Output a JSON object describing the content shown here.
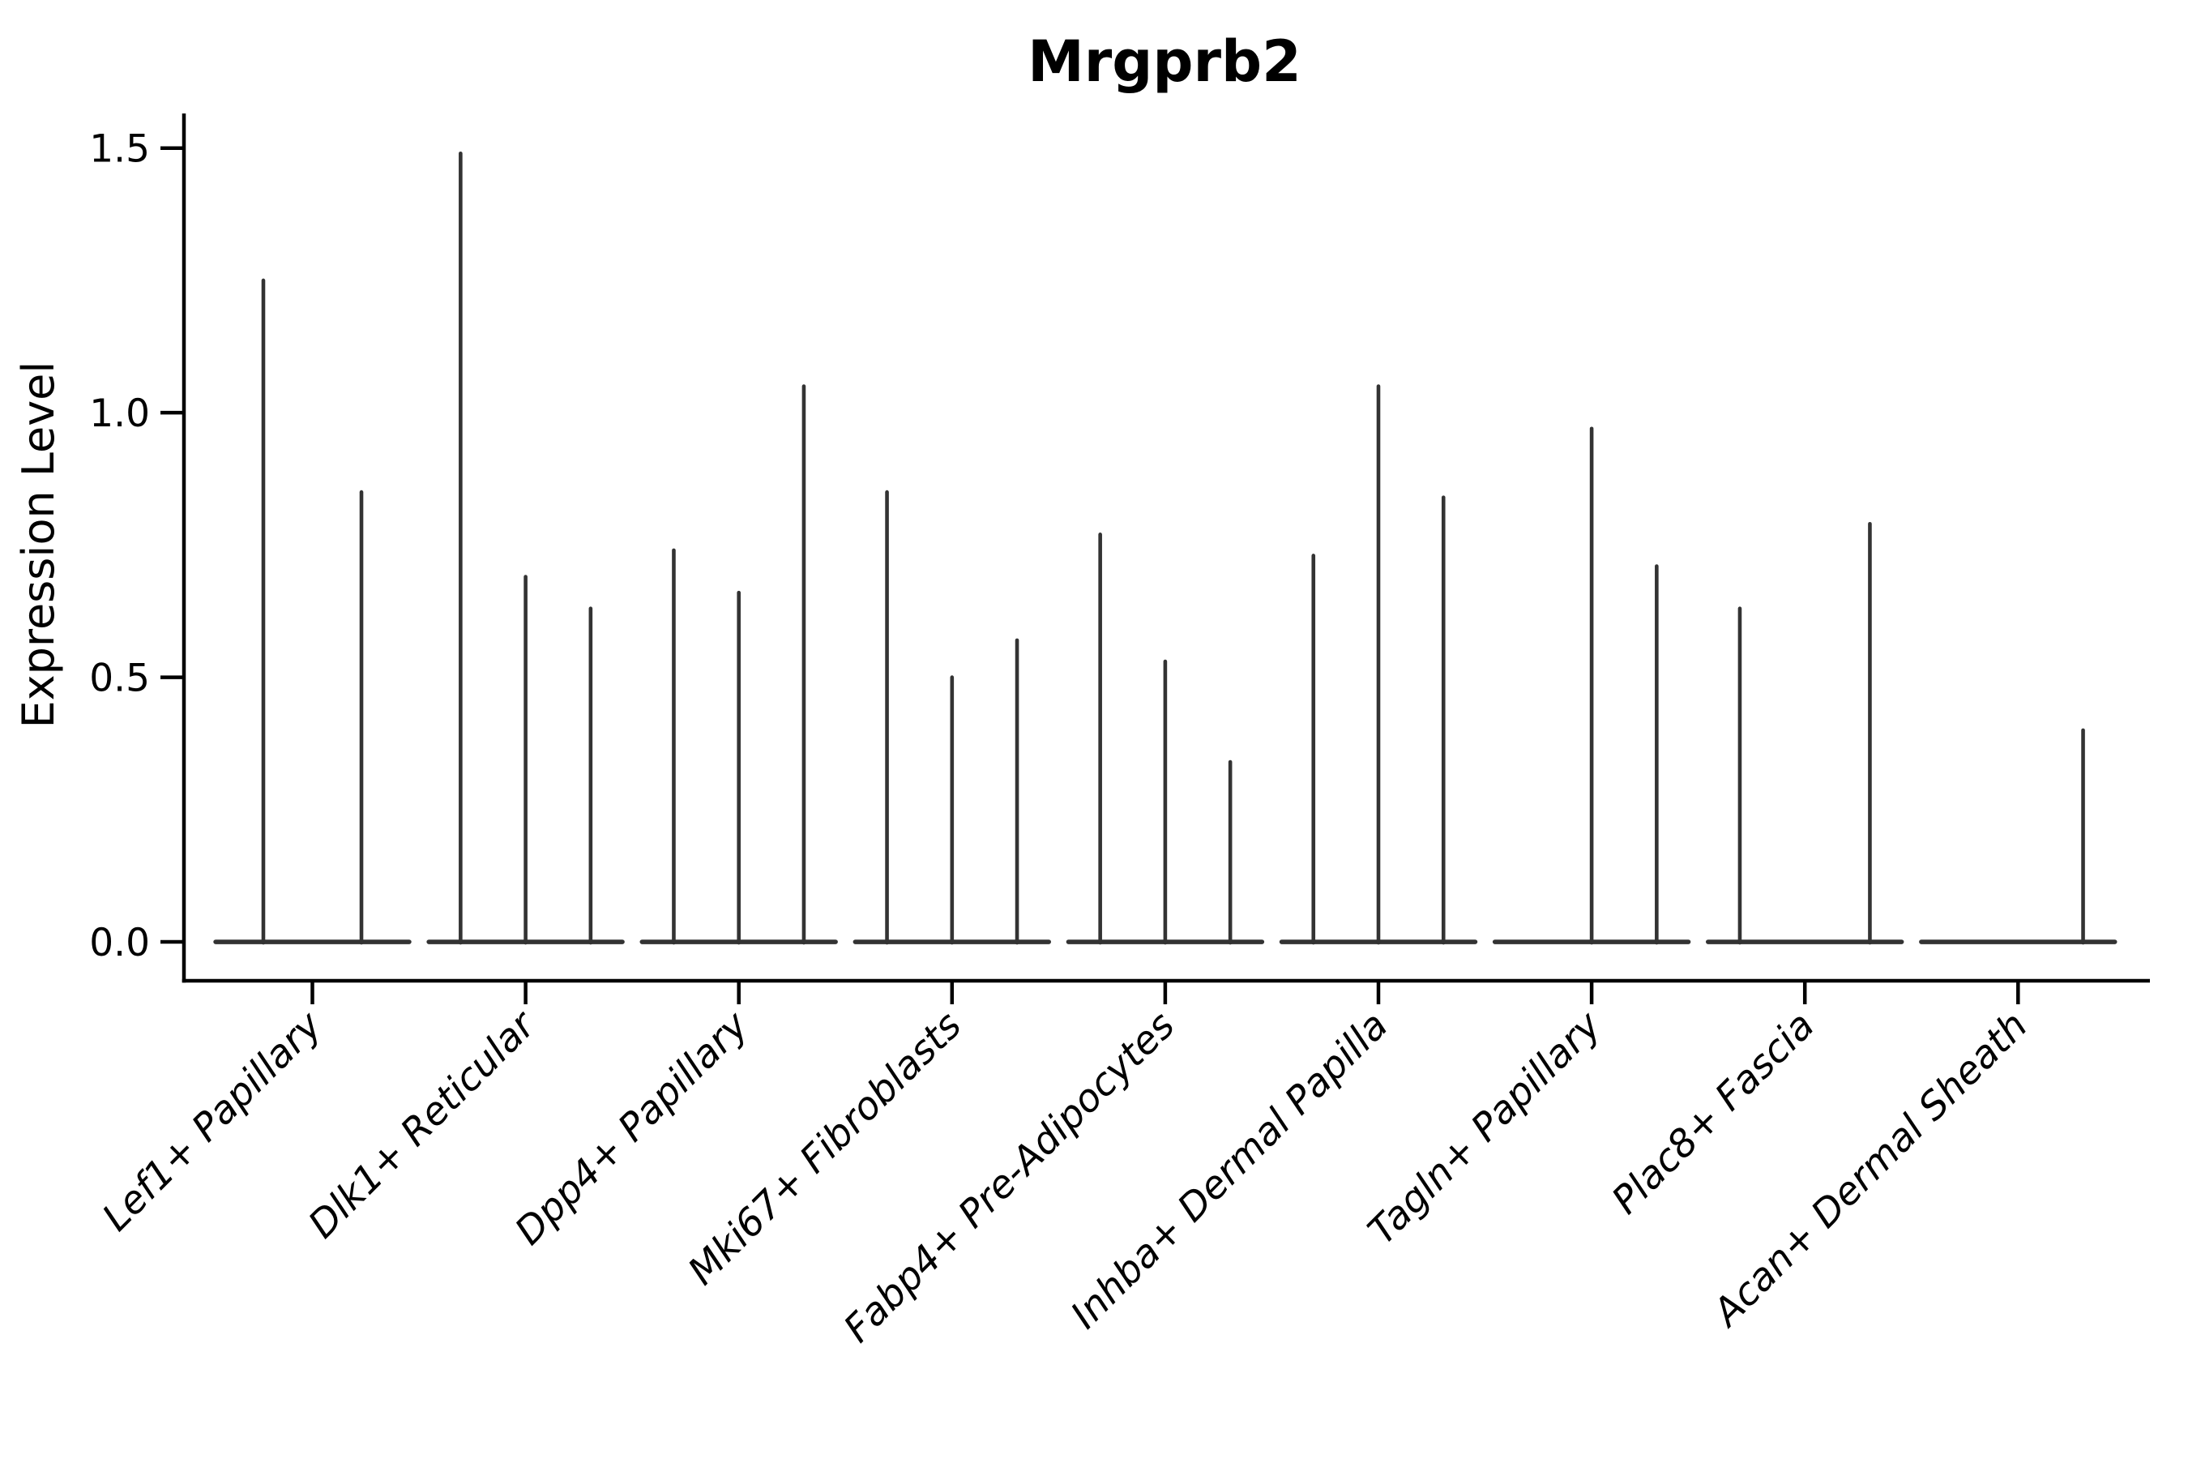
{
  "chart_data": {
    "type": "violin",
    "title": "Mrgprb2",
    "ylabel": "Expression Level",
    "xlabel": "",
    "categories": [
      "Lef1+ Papillary",
      "Dlk1+ Reticular",
      "Dpp4+ Papillary",
      "Mki67+ Fibroblasts",
      "Fabp4+ Pre-Adipocytes",
      "Inhba+ Dermal Papilla",
      "Tagln+ Papillary",
      "Plac8+ Fascia",
      "Acan+ Dermal Sheath"
    ],
    "yticks": [
      0.0,
      0.5,
      1.0,
      1.5
    ],
    "ytick_labels": [
      "0.0",
      "0.5",
      "1.0",
      "1.5"
    ],
    "ylim": [
      -0.0735,
      1.5655
    ],
    "grid": false,
    "legend": "none",
    "violin_color": "#333333",
    "axis_color": "#000000",
    "base_halfwidth": 0.4645,
    "violins": [
      {
        "category": "Lef1+ Papillary",
        "spikes": [
          {
            "offset": -0.23,
            "peak": 1.25
          },
          {
            "offset": 0.23,
            "peak": 0.85
          }
        ]
      },
      {
        "category": "Dlk1+ Reticular",
        "spikes": [
          {
            "offset": -0.305,
            "peak": 1.49
          },
          {
            "offset": 0.0,
            "peak": 0.69
          },
          {
            "offset": 0.305,
            "peak": 0.63
          }
        ]
      },
      {
        "category": "Dpp4+ Papillary",
        "spikes": [
          {
            "offset": -0.305,
            "peak": 0.74
          },
          {
            "offset": 0.0,
            "peak": 0.66
          },
          {
            "offset": 0.305,
            "peak": 1.05
          }
        ]
      },
      {
        "category": "Mki67+ Fibroblasts",
        "spikes": [
          {
            "offset": -0.305,
            "peak": 0.85
          },
          {
            "offset": 0.0,
            "peak": 0.5
          },
          {
            "offset": 0.305,
            "peak": 0.57
          }
        ]
      },
      {
        "category": "Fabp4+ Pre-Adipocytes",
        "spikes": [
          {
            "offset": -0.305,
            "peak": 0.77
          },
          {
            "offset": 0.0,
            "peak": 0.53
          },
          {
            "offset": 0.305,
            "peak": 0.34
          }
        ]
      },
      {
        "category": "Inhba+ Dermal Papilla",
        "spikes": [
          {
            "offset": -0.305,
            "peak": 0.73
          },
          {
            "offset": 0.0,
            "peak": 1.05
          },
          {
            "offset": 0.305,
            "peak": 0.84
          }
        ]
      },
      {
        "category": "Tagln+ Papillary",
        "spikes": [
          {
            "offset": 0.0,
            "peak": 0.97
          },
          {
            "offset": 0.305,
            "peak": 0.71
          }
        ]
      },
      {
        "category": "Plac8+ Fascia",
        "spikes": [
          {
            "offset": -0.305,
            "peak": 0.63
          },
          {
            "offset": 0.305,
            "peak": 0.79
          }
        ]
      },
      {
        "category": "Acan+ Dermal Sheath",
        "spikes": [
          {
            "offset": 0.305,
            "peak": 0.4
          }
        ]
      }
    ]
  }
}
